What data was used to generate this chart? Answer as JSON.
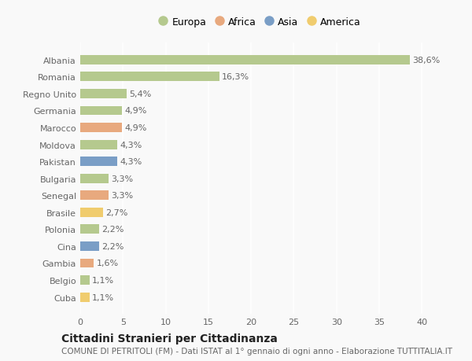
{
  "categories": [
    "Albania",
    "Romania",
    "Regno Unito",
    "Germania",
    "Marocco",
    "Moldova",
    "Pakistan",
    "Bulgaria",
    "Senegal",
    "Brasile",
    "Polonia",
    "Cina",
    "Gambia",
    "Belgio",
    "Cuba"
  ],
  "values": [
    38.6,
    16.3,
    5.4,
    4.9,
    4.9,
    4.3,
    4.3,
    3.3,
    3.3,
    2.7,
    2.2,
    2.2,
    1.6,
    1.1,
    1.1
  ],
  "labels": [
    "38,6%",
    "16,3%",
    "5,4%",
    "4,9%",
    "4,9%",
    "4,3%",
    "4,3%",
    "3,3%",
    "3,3%",
    "2,7%",
    "2,2%",
    "2,2%",
    "1,6%",
    "1,1%",
    "1,1%"
  ],
  "continents": [
    "Europa",
    "Europa",
    "Europa",
    "Europa",
    "Africa",
    "Europa",
    "Asia",
    "Europa",
    "Africa",
    "America",
    "Europa",
    "Asia",
    "Africa",
    "Europa",
    "America"
  ],
  "colors": {
    "Europa": "#b5c98e",
    "Africa": "#e8a97e",
    "Asia": "#7a9ec6",
    "America": "#f0cc6e"
  },
  "legend_order": [
    "Europa",
    "Africa",
    "Asia",
    "America"
  ],
  "xlim": [
    0,
    42
  ],
  "xticks": [
    0,
    5,
    10,
    15,
    20,
    25,
    30,
    35,
    40
  ],
  "title": "Cittadini Stranieri per Cittadinanza",
  "subtitle": "COMUNE DI PETRITOLI (FM) - Dati ISTAT al 1° gennaio di ogni anno - Elaborazione TUTTITALIA.IT",
  "background_color": "#f9f9f9",
  "grid_color": "#ffffff",
  "bar_height": 0.55,
  "title_fontsize": 10,
  "subtitle_fontsize": 7.5,
  "label_fontsize": 8,
  "tick_fontsize": 8,
  "legend_fontsize": 9
}
